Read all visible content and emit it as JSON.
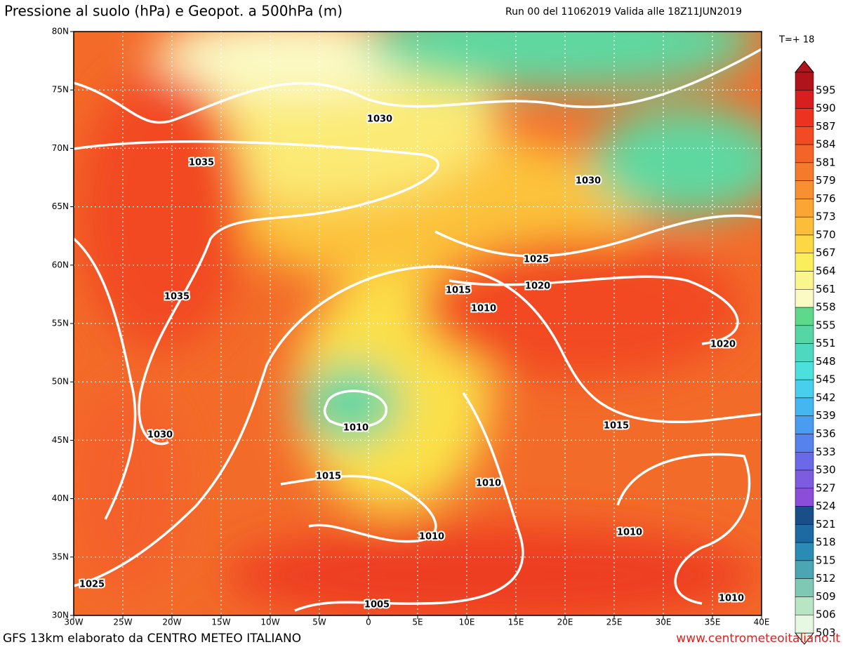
{
  "header": {
    "title": "Pressione al suolo (hPa) e Geopot. a 500hPa (m)",
    "run": "Run 00 del 11062019 Valida alle 18Z11JUN2019",
    "step": "T=+ 18"
  },
  "axes": {
    "lon_labels": [
      "30W",
      "25W",
      "20W",
      "15W",
      "10W",
      "5W",
      "0",
      "5E",
      "10E",
      "15E",
      "20E",
      "25E",
      "30E",
      "35E",
      "40E"
    ],
    "lat_labels": [
      "80N",
      "75N",
      "70N",
      "65N",
      "60N",
      "55N",
      "50N",
      "45N",
      "40N",
      "35N",
      "30N"
    ]
  },
  "legend": {
    "levels": [
      595,
      590,
      587,
      584,
      581,
      579,
      576,
      573,
      570,
      567,
      564,
      561,
      558,
      555,
      551,
      548,
      545,
      542,
      539,
      536,
      533,
      530,
      527,
      524,
      521,
      518,
      515,
      512,
      509,
      506,
      503
    ],
    "colors": [
      "#b0141a",
      "#d81e1e",
      "#ec3320",
      "#f24a22",
      "#f46428",
      "#f67a2c",
      "#f88f30",
      "#fba535",
      "#fcbe3a",
      "#fdd844",
      "#fbee5c",
      "#faf68c",
      "#fbf9c4",
      "#5ed88a",
      "#56d6a4",
      "#4fd8c0",
      "#4ce0dc",
      "#48cfee",
      "#44b6f0",
      "#4a9cf0",
      "#5682ee",
      "#6a6ae8",
      "#7e5ce0",
      "#8c4ed8",
      "#1a4e88",
      "#1d6aa2",
      "#2a8cb4",
      "#4aa6b2",
      "#7ec8b4",
      "#b8e6c4",
      "#e6f8e2"
    ]
  },
  "isobars": [
    "1030",
    "1035",
    "1030",
    "1025",
    "1020",
    "1015",
    "1035",
    "1010",
    "1020",
    "1010",
    "1030",
    "1015",
    "1015",
    "1010",
    "1010",
    "1010",
    "1025",
    "1005",
    "1010"
  ],
  "footer": {
    "credit": "GFS 13km elaborato da CENTRO METEO ITALIANO",
    "url": "www.centrometeoitaliano.it"
  }
}
